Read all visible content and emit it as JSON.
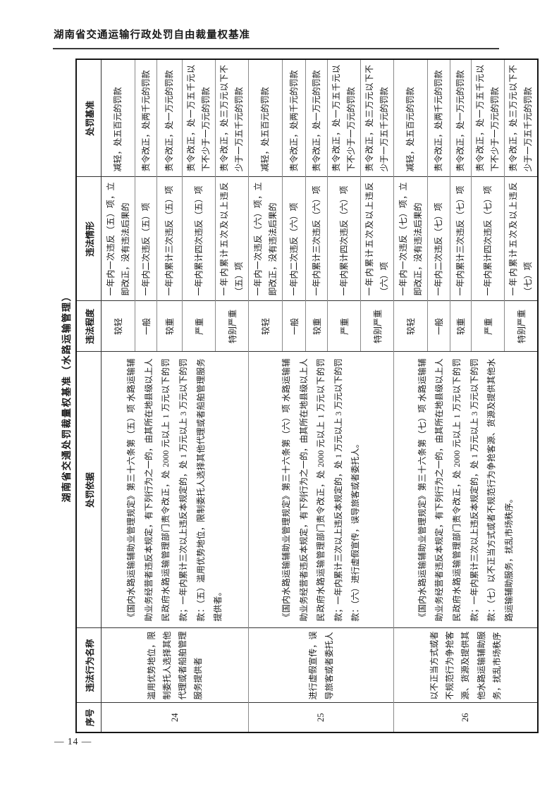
{
  "page": {
    "header_title": "湖南省交通运输行政处罚自由裁量权基准",
    "footer_page_number": "— 14 —"
  },
  "table": {
    "title": "湖南省交通处罚裁量权基准（水路运输管理）",
    "columns": [
      "序号",
      "违法行为名称",
      "处罚依据",
      "违法程度",
      "违法情形",
      "处罚基准"
    ],
    "violations": [
      {
        "no": "24",
        "name": "滥用优势地位，限制委托人选择其他代理或者船舶管理服务提供者",
        "basis": "《国内水路运输辅助业管理规定》第三十六条第（五）项 水路运输辅助业务经营者违反本规定，有下列行为之一的，由其所在地县级以上人民政府水路运输管理部门责令改正，处 2000 元以上 1 万元以下的罚款；一年内累计三次以上违反本规定的，处 1 万元以上 3 万元以下的罚款：（五）滥用优势地位，限制委托人选择其他代理或者船舶管理服务提供者。",
        "levels": [
          {
            "degree": "较轻",
            "circumstance": "一年内一次违反（五）项，立即改正，没有违法后果的",
            "standard": "减轻，处五百元的罚款"
          },
          {
            "degree": "一般",
            "circumstance": "一年内二次违反（五）项",
            "standard": "责令改正，处两千元的罚款"
          },
          {
            "degree": "较重",
            "circumstance": "一年内累计三次违反（五）项",
            "standard": "责令改正，处一万元的罚款"
          },
          {
            "degree": "严重",
            "circumstance": "一年内累计四次违反（五）项",
            "standard": "责令改正，处一万五千元以下不少于一万元的罚款"
          },
          {
            "degree": "特别严重",
            "circumstance": "一年内累计五次及以上违反（五）项",
            "standard": "责令改正，处三万元以下不少于一万五千元的罚款"
          }
        ]
      },
      {
        "no": "25",
        "name": "进行虚假宣传，误导旅客或者委托人",
        "basis": "《国内水路运输辅助业管理规定》第三十六条第（六）项 水路运输辅助业务经营者违反本规定，有下列行为之一的，由其所在地县级以上人民政府水路运输管理部门责令改正，处 2000 元以上 1 万元以下的罚款；一年内累计三次以上违反本规定的，处 1 万元以上 3 万元以下的罚款：（六）进行虚假宣传，误导旅客或者委托人。",
        "levels": [
          {
            "degree": "较轻",
            "circumstance": "一年内一次违反（六）项，立即改正，没有违法后果的",
            "standard": "减轻，处五百元的罚款"
          },
          {
            "degree": "一般",
            "circumstance": "一年内二次违反（六）项",
            "standard": "责令改正，处两千元的罚款"
          },
          {
            "degree": "较重",
            "circumstance": "一年内累计三次违反（六）项",
            "standard": "责令改正，处一万元的罚款"
          },
          {
            "degree": "严重",
            "circumstance": "一年内累计四次违反（六）项",
            "standard": "责令改正，处一万五千元以下不少于一万元的罚款"
          },
          {
            "degree": "特别严重",
            "circumstance": "一年内累计五次及以上违反（六）项",
            "standard": "责令改正，处三万元以下不少于一万五千元的罚款"
          }
        ]
      },
      {
        "no": "26",
        "name": "以不正当方式或者不规范行为争抢客源、货源及提供其他水路运输辅助服务，扰乱市场秩序",
        "basis": "《国内水路运输辅助业管理规定》第三十六条第（七）项 水路运输辅助业务经营者违反本规定，有下列行为之一的，由其所在地县级以上人民政府水路运输管理部门责令改正，处 2000 元以上 1 万元以下的罚款；一年内累计三次以上违反本规定的，处 1 万元以上 3 万元以下的罚款：（七）以不正当方式或者不规范行为争抢客源、货源及提供其他水路运输辅助服务，扰乱市场秩序。",
        "levels": [
          {
            "degree": "较轻",
            "circumstance": "一年内一次违反（七）项，立即改正，没有违法后果的",
            "standard": "减轻，处五百元的罚款"
          },
          {
            "degree": "一般",
            "circumstance": "一年内二次违反（七）项",
            "standard": "责令改正，处两千元的罚款"
          },
          {
            "degree": "较重",
            "circumstance": "一年内累计三次违反（七）项",
            "standard": "责令改正，处一万元的罚款"
          },
          {
            "degree": "严重",
            "circumstance": "一年内累计四次违反（七）项",
            "standard": "责令改正，处一万五千元以下不少于一万元的罚款"
          },
          {
            "degree": "特别严重",
            "circumstance": "一年内累计五次及以上违反（七）项",
            "standard": "责令改正，处三万元以下不少于一万五千元的罚款"
          }
        ]
      }
    ]
  }
}
